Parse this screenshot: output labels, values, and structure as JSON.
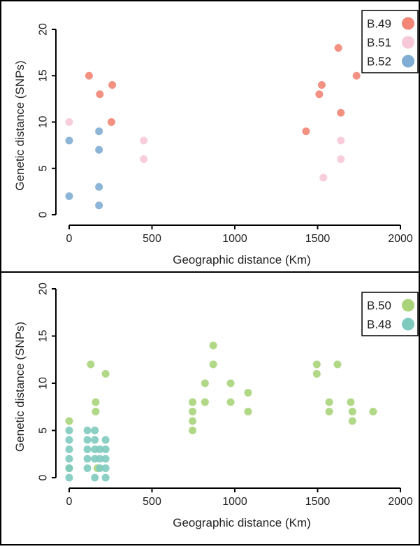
{
  "chart_data": [
    {
      "type": "scatter",
      "xlabel": "Geographic distance (Km)",
      "ylabel": "Genetic distance (SNPs)",
      "xlim": [
        0,
        2000
      ],
      "ylim": [
        0,
        20
      ],
      "xticks": [
        "0",
        "500",
        "1000",
        "1500",
        "2000"
      ],
      "yticks": [
        "0",
        "5",
        "10",
        "15",
        "20"
      ],
      "legend_position": "top-right",
      "grid": false,
      "series": [
        {
          "name": "B.49",
          "color": "#f28576",
          "points": [
            [
              120,
              15
            ],
            [
              185,
              13
            ],
            [
              260,
              14
            ],
            [
              255,
              10
            ],
            [
              1430,
              9
            ],
            [
              1510,
              13
            ],
            [
              1525,
              14
            ],
            [
              1625,
              18
            ],
            [
              1640,
              11
            ],
            [
              1735,
              15
            ]
          ]
        },
        {
          "name": "B.51",
          "color": "#f7c8d8",
          "points": [
            [
              0,
              10
            ],
            [
              450,
              8
            ],
            [
              450,
              6
            ],
            [
              1535,
              4
            ],
            [
              1640,
              8
            ],
            [
              1640,
              6
            ]
          ]
        },
        {
          "name": "B.52",
          "color": "#7fadd4",
          "points": [
            [
              0,
              8
            ],
            [
              0,
              2
            ],
            [
              180,
              9
            ],
            [
              180,
              7
            ],
            [
              180,
              3
            ],
            [
              180,
              1
            ]
          ]
        }
      ]
    },
    {
      "type": "scatter",
      "xlabel": "Geographic distance (Km)",
      "ylabel": "Genetic distance (SNPs)",
      "xlim": [
        0,
        2000
      ],
      "ylim": [
        0,
        20
      ],
      "xticks": [
        "0",
        "500",
        "1000",
        "1500",
        "2000"
      ],
      "yticks": [
        "0",
        "5",
        "10",
        "15",
        "20"
      ],
      "legend_position": "top-right",
      "grid": false,
      "series": [
        {
          "name": "B.50",
          "color": "#a9d47a",
          "points": [
            [
              0,
              6
            ],
            [
              0,
              1
            ],
            [
              130,
              12
            ],
            [
              160,
              8
            ],
            [
              160,
              7
            ],
            [
              170,
              1
            ],
            [
              220,
              11
            ],
            [
              745,
              8
            ],
            [
              745,
              7
            ],
            [
              745,
              6
            ],
            [
              745,
              5
            ],
            [
              820,
              8
            ],
            [
              820,
              10
            ],
            [
              870,
              14
            ],
            [
              870,
              12
            ],
            [
              975,
              10
            ],
            [
              975,
              8
            ],
            [
              1080,
              9
            ],
            [
              1080,
              7
            ],
            [
              1495,
              12
            ],
            [
              1495,
              11
            ],
            [
              1570,
              8
            ],
            [
              1570,
              7
            ],
            [
              1620,
              12
            ],
            [
              1700,
              8
            ],
            [
              1710,
              7
            ],
            [
              1710,
              6
            ],
            [
              1835,
              7
            ]
          ]
        },
        {
          "name": "B.48",
          "color": "#7ecabf",
          "points": [
            [
              0,
              5
            ],
            [
              0,
              4
            ],
            [
              0,
              3
            ],
            [
              0,
              2
            ],
            [
              0,
              1
            ],
            [
              0,
              0
            ],
            [
              110,
              5
            ],
            [
              110,
              4
            ],
            [
              110,
              3
            ],
            [
              110,
              2
            ],
            [
              110,
              1
            ],
            [
              155,
              5
            ],
            [
              155,
              4
            ],
            [
              155,
              3
            ],
            [
              155,
              2
            ],
            [
              155,
              0
            ],
            [
              185,
              3
            ],
            [
              185,
              2
            ],
            [
              185,
              1
            ],
            [
              220,
              4
            ],
            [
              220,
              3
            ],
            [
              220,
              2
            ],
            [
              220,
              1
            ],
            [
              220,
              0
            ]
          ]
        }
      ]
    }
  ]
}
